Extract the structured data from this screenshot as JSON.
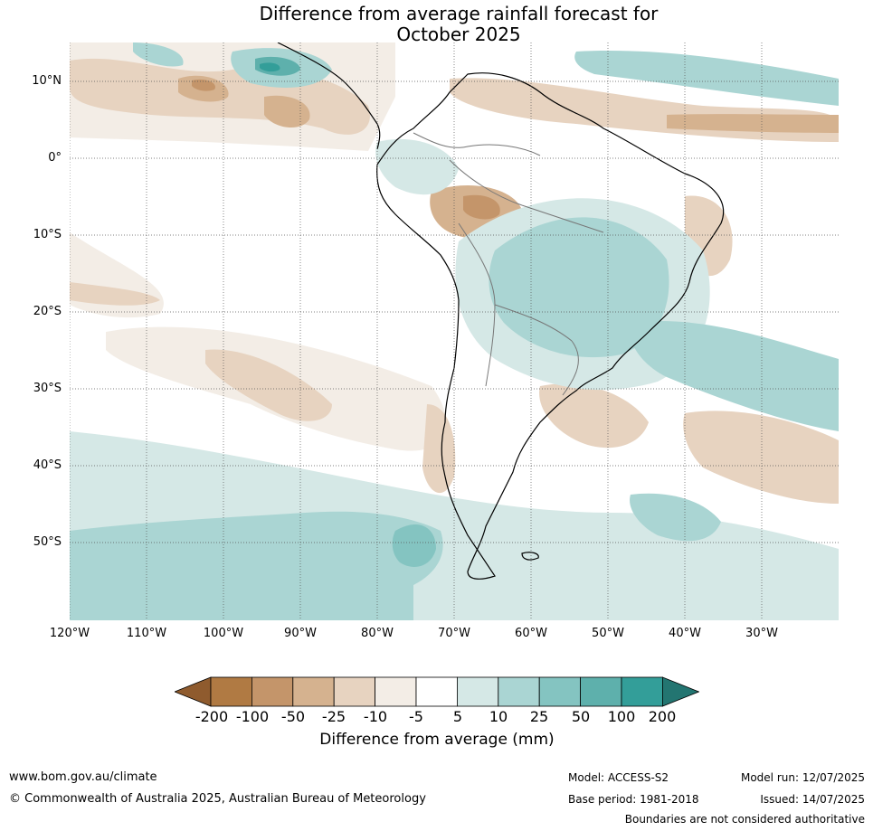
{
  "title_line1": "Difference from average rainfall forecast for",
  "title_line2": "October 2025",
  "latitudes": [
    "10°N",
    "0°",
    "10°S",
    "20°S",
    "30°S",
    "40°S",
    "50°S"
  ],
  "longitudes": [
    "120°W",
    "110°W",
    "100°W",
    "90°W",
    "80°W",
    "70°W",
    "60°W",
    "50°W",
    "40°W",
    "30°W"
  ],
  "legend": {
    "title": "Difference from average (mm)",
    "ticks": [
      "-200",
      "-100",
      "-50",
      "-25",
      "-10",
      "-5",
      "5",
      "10",
      "25",
      "50",
      "100",
      "200"
    ],
    "colors": [
      "#8f5b2e",
      "#b07a43",
      "#c4956a",
      "#d5b28f",
      "#e7d3c0",
      "#f3ede6",
      "#ffffff",
      "#d5e8e6",
      "#aad5d3",
      "#84c4c1",
      "#5eb0ac",
      "#339e99",
      "#237571"
    ]
  },
  "footer": {
    "website": "www.bom.gov.au/climate",
    "copyright": "© Commonwealth of Australia 2025, Australian Bureau of Meteorology",
    "model": "Model: ACCESS-S2",
    "base_period": "Base period: 1981-2018",
    "model_run": "Model run: 12/07/2025",
    "issued": "Issued: 14/07/2025",
    "disclaimer": "Boundaries are not considered authoritative"
  }
}
